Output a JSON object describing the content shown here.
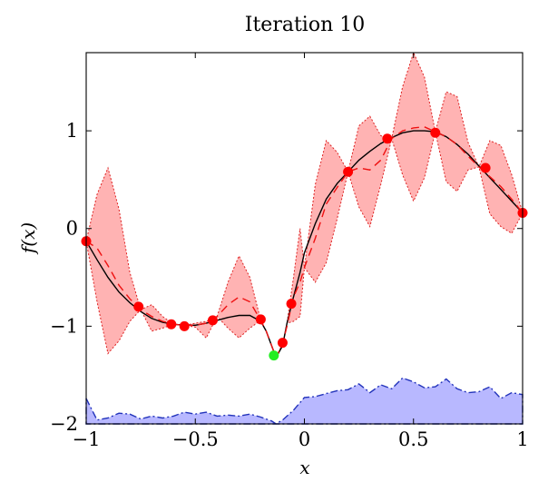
{
  "chart_data": {
    "type": "line",
    "title": "Iteration 10",
    "xlabel": "x",
    "ylabel": "f(x)",
    "xlim": [
      -1,
      1
    ],
    "ylim": [
      -2,
      1.8
    ],
    "xticks": [
      -1,
      -0.5,
      0,
      0.5,
      1
    ],
    "xtick_labels": [
      "−1",
      "−0.5",
      "0",
      "0.5",
      "1"
    ],
    "yticks": [
      -2,
      -1,
      0,
      1
    ],
    "ytick_labels": [
      "−2",
      "−1",
      "0",
      "1"
    ],
    "grid": false,
    "series": [
      {
        "style": "true-function",
        "color": "#000000",
        "x": [
          -1,
          -0.95,
          -0.9,
          -0.85,
          -0.8,
          -0.75,
          -0.7,
          -0.65,
          -0.6,
          -0.55,
          -0.5,
          -0.45,
          -0.4,
          -0.35,
          -0.3,
          -0.25,
          -0.2,
          -0.175,
          -0.15,
          -0.13,
          -0.1,
          -0.08,
          -0.05,
          -0.02,
          0,
          0.05,
          0.1,
          0.15,
          0.2,
          0.25,
          0.3,
          0.35,
          0.4,
          0.45,
          0.5,
          0.55,
          0.6,
          0.65,
          0.7,
          0.75,
          0.8,
          0.85,
          0.9,
          0.95,
          1
        ],
        "y": [
          -0.13,
          -0.32,
          -0.5,
          -0.65,
          -0.76,
          -0.85,
          -0.92,
          -0.96,
          -0.98,
          -0.99,
          -0.99,
          -0.97,
          -0.94,
          -0.91,
          -0.89,
          -0.89,
          -0.95,
          -1.05,
          -1.2,
          -1.32,
          -1.2,
          -0.97,
          -0.7,
          -0.45,
          -0.25,
          0.05,
          0.3,
          0.46,
          0.58,
          0.7,
          0.79,
          0.87,
          0.93,
          0.98,
          1.0,
          1.0,
          0.99,
          0.94,
          0.86,
          0.76,
          0.64,
          0.52,
          0.4,
          0.28,
          0.16
        ]
      },
      {
        "style": "posterior-mean",
        "color": "#ee1111",
        "x": [
          -1,
          -0.95,
          -0.9,
          -0.85,
          -0.8,
          -0.75,
          -0.7,
          -0.65,
          -0.6,
          -0.55,
          -0.5,
          -0.45,
          -0.4,
          -0.35,
          -0.3,
          -0.25,
          -0.2,
          -0.175,
          -0.15,
          -0.13,
          -0.1,
          -0.08,
          -0.05,
          -0.02,
          0,
          0.05,
          0.1,
          0.15,
          0.2,
          0.25,
          0.3,
          0.35,
          0.4,
          0.45,
          0.5,
          0.55,
          0.6,
          0.65,
          0.7,
          0.75,
          0.8,
          0.85,
          0.9,
          0.95,
          1
        ],
        "y": [
          -0.13,
          -0.2,
          -0.38,
          -0.58,
          -0.72,
          -0.83,
          -0.9,
          -0.95,
          -0.98,
          -0.99,
          -0.99,
          -0.97,
          -0.9,
          -0.78,
          -0.7,
          -0.75,
          -0.94,
          -1.05,
          -1.2,
          -1.32,
          -1.18,
          -1.0,
          -0.7,
          -0.55,
          -0.4,
          -0.1,
          0.25,
          0.42,
          0.58,
          0.62,
          0.6,
          0.7,
          0.92,
          1.0,
          1.03,
          1.04,
          0.99,
          0.94,
          0.86,
          0.74,
          0.63,
          0.53,
          0.43,
          0.3,
          0.16
        ]
      }
    ],
    "confidence_band": {
      "color": "#ffb3b3",
      "edge_color": "#dd2222",
      "x": [
        -1,
        -0.95,
        -0.9,
        -0.85,
        -0.8,
        -0.75,
        -0.7,
        -0.65,
        -0.6,
        -0.55,
        -0.5,
        -0.45,
        -0.4,
        -0.35,
        -0.3,
        -0.25,
        -0.2,
        -0.175,
        -0.15,
        -0.13,
        -0.1,
        -0.08,
        -0.05,
        -0.02,
        0,
        0.05,
        0.1,
        0.15,
        0.2,
        0.25,
        0.3,
        0.35,
        0.4,
        0.45,
        0.5,
        0.55,
        0.6,
        0.65,
        0.7,
        0.75,
        0.8,
        0.85,
        0.9,
        0.95,
        1
      ],
      "upper": [
        -0.13,
        0.35,
        0.62,
        0.2,
        -0.45,
        -0.83,
        -0.78,
        -0.9,
        -0.98,
        -0.99,
        -0.97,
        -0.95,
        -0.9,
        -0.55,
        -0.28,
        -0.5,
        -0.94,
        -1.05,
        -1.2,
        -1.32,
        -1.18,
        -0.97,
        -0.5,
        0.0,
        -0.4,
        0.45,
        0.9,
        0.78,
        0.58,
        1.05,
        1.15,
        0.95,
        0.92,
        1.45,
        1.8,
        1.55,
        0.99,
        1.4,
        1.35,
        0.88,
        0.63,
        0.9,
        0.85,
        0.55,
        0.16
      ],
      "lower": [
        -0.13,
        -0.75,
        -1.28,
        -1.15,
        -0.95,
        -0.83,
        -1.05,
        -1.02,
        -0.98,
        -0.99,
        -1.01,
        -1.12,
        -0.9,
        -1.02,
        -1.12,
        -1.02,
        -0.94,
        -1.05,
        -1.2,
        -1.32,
        -1.18,
        -0.97,
        -0.95,
        -0.9,
        -0.4,
        -0.55,
        -0.35,
        0.1,
        0.58,
        0.22,
        0.02,
        0.45,
        0.92,
        0.55,
        0.28,
        0.52,
        0.99,
        0.48,
        0.38,
        0.6,
        0.63,
        0.15,
        0.02,
        -0.05,
        0.16
      ]
    },
    "observations": {
      "color": "#ff0000",
      "x": [
        -1.0,
        -0.76,
        -0.61,
        -0.55,
        -0.42,
        -0.2,
        -0.1,
        -0.06,
        0.2,
        0.38,
        0.6,
        0.83,
        1.0
      ],
      "y": [
        -0.13,
        -0.8,
        -0.98,
        -1.0,
        -0.94,
        -0.93,
        -1.17,
        -0.77,
        0.58,
        0.92,
        0.98,
        0.62,
        0.16
      ]
    },
    "best_point": {
      "color": "#22ee22",
      "x": -0.14,
      "y": -1.3
    },
    "acquisition": {
      "color": "#b8b8ff",
      "edge_color": "#2233bb",
      "x": [
        -1,
        -0.95,
        -0.9,
        -0.85,
        -0.8,
        -0.75,
        -0.7,
        -0.65,
        -0.6,
        -0.55,
        -0.5,
        -0.45,
        -0.4,
        -0.35,
        -0.3,
        -0.25,
        -0.2,
        -0.15,
        -0.13,
        -0.1,
        -0.05,
        0,
        0.05,
        0.1,
        0.15,
        0.2,
        0.25,
        0.3,
        0.35,
        0.4,
        0.45,
        0.5,
        0.55,
        0.6,
        0.65,
        0.7,
        0.75,
        0.8,
        0.85,
        0.9,
        0.95,
        1
      ],
      "y": [
        -1.74,
        -1.96,
        -1.94,
        -1.89,
        -1.9,
        -1.95,
        -1.92,
        -1.94,
        -1.92,
        -1.88,
        -1.9,
        -1.88,
        -1.92,
        -1.91,
        -1.92,
        -1.9,
        -1.93,
        -1.97,
        -2.0,
        -1.96,
        -1.86,
        -1.73,
        -1.72,
        -1.69,
        -1.66,
        -1.65,
        -1.59,
        -1.68,
        -1.6,
        -1.64,
        -1.53,
        -1.57,
        -1.63,
        -1.62,
        -1.54,
        -1.64,
        -1.68,
        -1.67,
        -1.62,
        -1.74,
        -1.68,
        -1.7
      ]
    }
  }
}
